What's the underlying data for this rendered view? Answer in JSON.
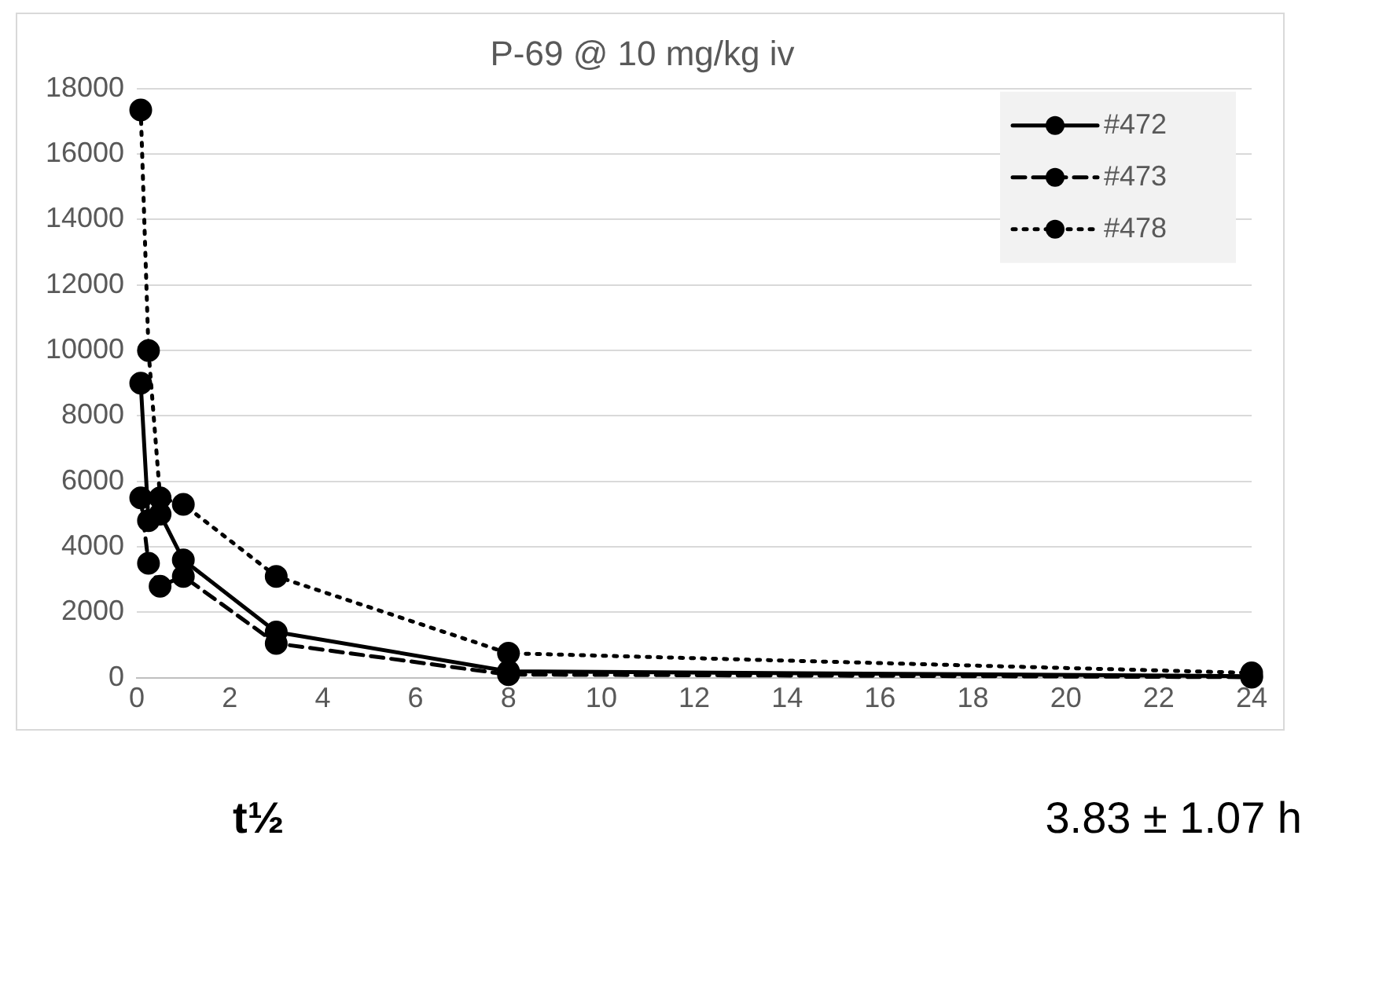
{
  "chart_data": {
    "type": "line",
    "title": "P-69 @ 10 mg/kg iv",
    "x": [
      0.083,
      0.25,
      0.5,
      1,
      3,
      8,
      24
    ],
    "series": [
      {
        "name": "#472",
        "color": "#000000",
        "line_style": "solid",
        "values": [
          9000,
          4800,
          5000,
          3600,
          1400,
          200,
          50
        ]
      },
      {
        "name": "#473",
        "color": "#000000",
        "line_style": "dashed",
        "values": [
          5500,
          3500,
          2800,
          3100,
          1050,
          100,
          20
        ]
      },
      {
        "name": "#478",
        "color": "#000000",
        "line_style": "dotted",
        "values": [
          17350,
          10000,
          5500,
          5300,
          3100,
          750,
          150
        ]
      }
    ],
    "xlim": [
      0,
      24
    ],
    "xticks": [
      0,
      2,
      4,
      6,
      8,
      10,
      12,
      14,
      16,
      18,
      20,
      22,
      24
    ],
    "ylim": [
      0,
      18000
    ],
    "yticks": [
      0,
      2000,
      4000,
      6000,
      8000,
      10000,
      12000,
      14000,
      16000,
      18000
    ],
    "grid": "y",
    "legend": "top right",
    "marker": "circle",
    "annotations": [
      "t½",
      "3.83 ± 1.07 h"
    ]
  }
}
